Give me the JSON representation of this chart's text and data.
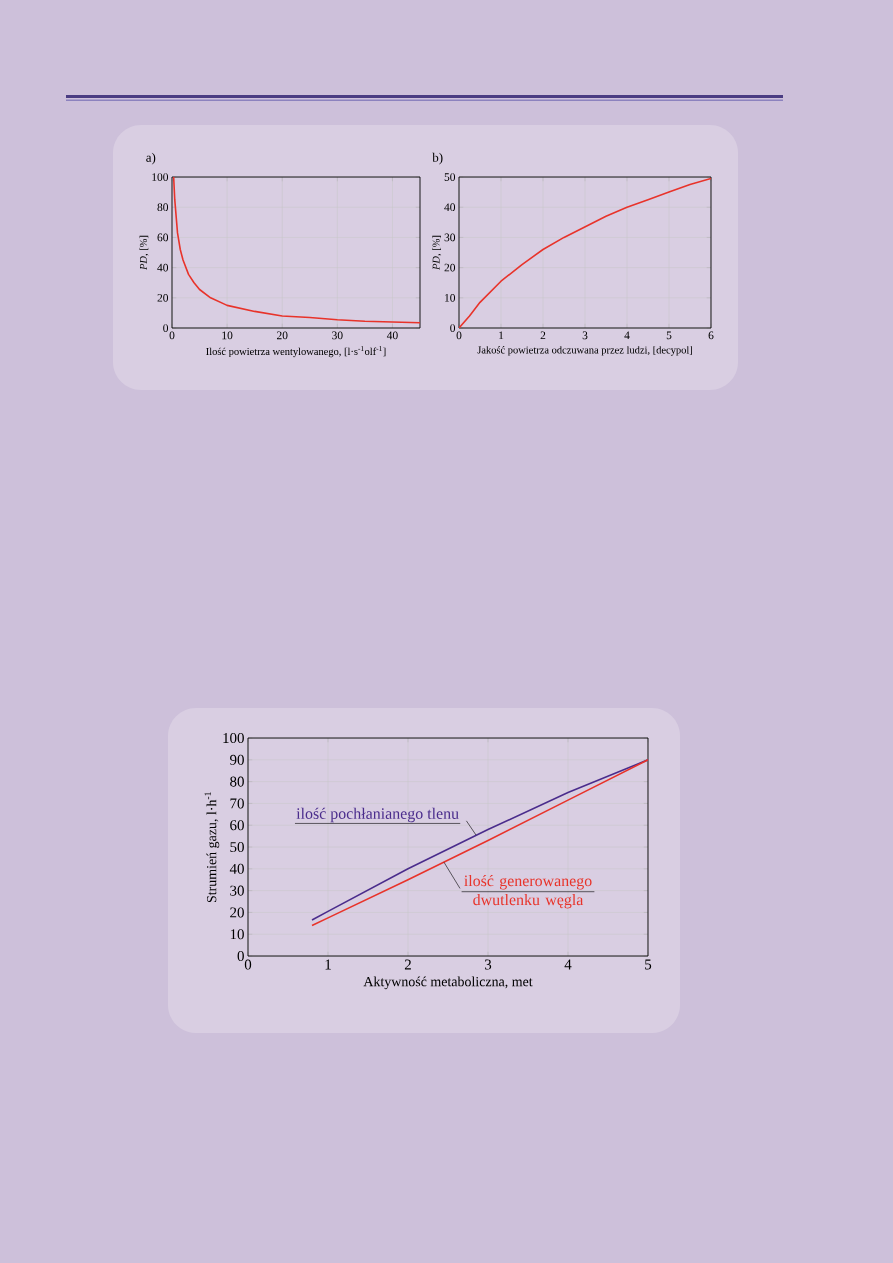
{
  "chart_data": [
    {
      "type": "line",
      "title": "a)",
      "xlabel": "Ilość powietrza wentylowanego, [l·s$^{-1}$olf$^{-1}$]",
      "ylabel": "*PD*, [%]",
      "color": "#e8332a",
      "x": [
        0.3,
        0.5,
        1,
        1.5,
        2,
        3,
        4,
        5,
        7,
        10,
        15,
        20,
        25,
        30,
        35,
        40,
        45
      ],
      "values": [
        100,
        85,
        63,
        52,
        45,
        35.5,
        30,
        25.5,
        20,
        15,
        11,
        8,
        7,
        5.5,
        4.5,
        4,
        3.5
      ],
      "xlim": [
        0,
        45
      ],
      "ylim": [
        0,
        100
      ],
      "xticks": [
        0,
        10,
        20,
        30,
        40
      ],
      "yticks": [
        0,
        20,
        40,
        60,
        80,
        100
      ],
      "grid": true
    },
    {
      "type": "line",
      "title": "b)",
      "xlabel": "Jakość powietrza odczuwana przez ludzi,  [decypol]",
      "ylabel": "*PD*, [%]",
      "color": "#e8332a",
      "x": [
        0,
        0.25,
        0.5,
        1,
        1.5,
        2,
        2.5,
        3,
        3.5,
        4,
        4.5,
        5,
        5.5,
        6
      ],
      "values": [
        0,
        4,
        8.5,
        15.5,
        21,
        26,
        30,
        33.5,
        37,
        40,
        42.5,
        45,
        47.5,
        49.5
      ],
      "xlim": [
        0,
        6
      ],
      "ylim": [
        0,
        50
      ],
      "xticks": [
        0,
        1,
        2,
        3,
        4,
        5,
        6
      ],
      "yticks": [
        0,
        10,
        20,
        30,
        40,
        50
      ],
      "grid": true
    },
    {
      "type": "line",
      "xlabel": "Aktywność metaboliczna, met",
      "ylabel": "Strumień gazu, l·h$^{-1}$",
      "x": [
        0.8,
        1,
        2,
        3,
        4,
        5
      ],
      "series": [
        {
          "name": "ilość pochłanianego tlenu",
          "color": "#4a2c8c",
          "values": [
            16.5,
            20.5,
            40,
            58,
            75,
            90
          ]
        },
        {
          "name": "ilość generowanego dwutlenku węgla",
          "color": "#e8332a",
          "values": [
            14,
            17.5,
            35,
            53,
            71.5,
            90
          ]
        }
      ],
      "xlim": [
        0,
        5
      ],
      "ylim": [
        0,
        100
      ],
      "xticks": [
        0,
        1,
        2,
        3,
        4,
        5
      ],
      "yticks": [
        0,
        10,
        20,
        30,
        40,
        50,
        60,
        70,
        80,
        90,
        100
      ],
      "grid": true
    }
  ]
}
